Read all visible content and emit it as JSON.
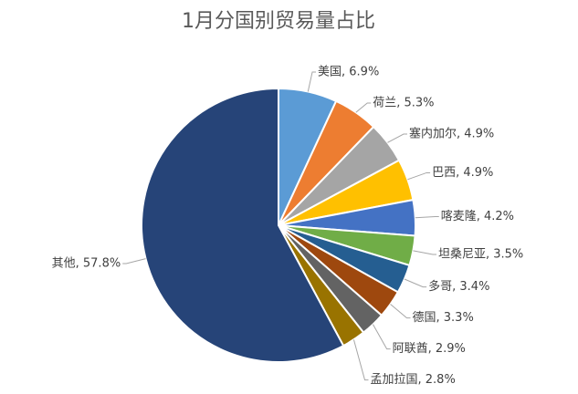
{
  "chart_data": {
    "type": "pie",
    "title": "1月分国别贸易量占比",
    "values": [
      6.9,
      5.3,
      4.9,
      4.9,
      4.2,
      3.5,
      3.4,
      3.3,
      2.9,
      2.8,
      57.8
    ],
    "value_labels": [
      "美国, 6.9%",
      "荷兰, 5.3%",
      "塞内加尔, 4.9%",
      "巴西, 4.9%",
      "喀麦隆, 4.2%",
      "坦桑尼亚, 3.5%",
      "多哥, 3.4%",
      "德国, 3.3%",
      "阿联酋, 2.9%",
      "孟加拉国, 2.8%",
      "其他, 57.8%"
    ],
    "colors": [
      "#5B9BD5",
      "#ED7D31",
      "#A5A5A5",
      "#FFC000",
      "#4472C4",
      "#70AD47",
      "#255E91",
      "#9E480E",
      "#636363",
      "#997300",
      "#264478"
    ]
  }
}
